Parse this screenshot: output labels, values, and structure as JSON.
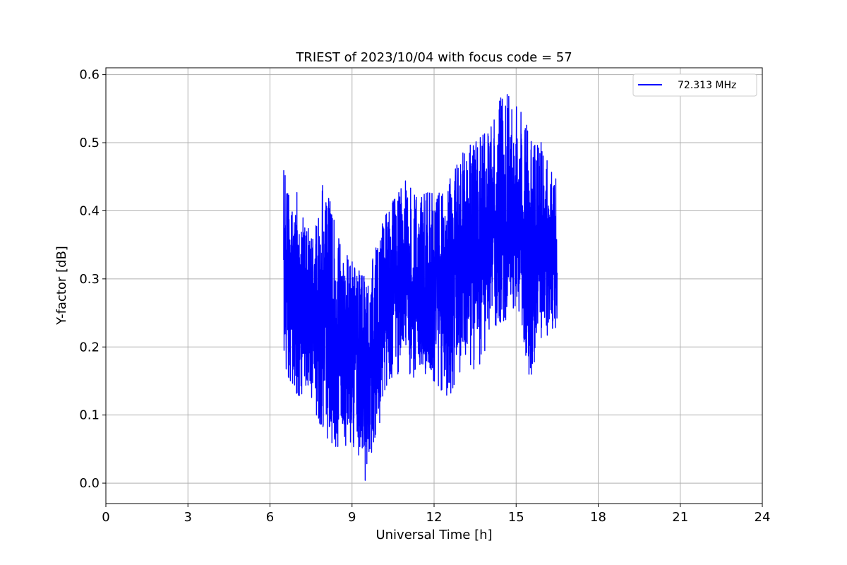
{
  "chart_data": {
    "type": "line",
    "title": "TRIEST of 2023/10/04 with focus code = 57",
    "xlabel": "Universal Time [h]",
    "ylabel": "Y-factor [dB]",
    "xlim": [
      0,
      24
    ],
    "ylim": [
      -0.03,
      0.61
    ],
    "xticks": [
      0,
      3,
      6,
      9,
      12,
      15,
      18,
      21,
      24
    ],
    "yticks": [
      0.0,
      0.1,
      0.2,
      0.3,
      0.4,
      0.5,
      0.6
    ],
    "ytick_labels": [
      "0.0",
      "0.1",
      "0.2",
      "0.3",
      "0.4",
      "0.5",
      "0.6"
    ],
    "grid": true,
    "legend_position": "top-right",
    "series": [
      {
        "name": "72.313 MHz",
        "color": "#0000ff",
        "x_range": [
          6.5,
          16.5
        ],
        "envelope": [
          {
            "x": 6.5,
            "low": 0.17,
            "high": 0.46,
            "center": 0.27
          },
          {
            "x": 7.0,
            "low": 0.13,
            "high": 0.43,
            "center": 0.25
          },
          {
            "x": 7.5,
            "low": 0.12,
            "high": 0.36,
            "center": 0.24
          },
          {
            "x": 8.0,
            "low": 0.07,
            "high": 0.46,
            "center": 0.23
          },
          {
            "x": 8.5,
            "low": 0.05,
            "high": 0.36,
            "center": 0.21
          },
          {
            "x": 9.0,
            "low": 0.06,
            "high": 0.33,
            "center": 0.19
          },
          {
            "x": 9.5,
            "low": 0.0,
            "high": 0.3,
            "center": 0.17
          },
          {
            "x": 10.0,
            "low": 0.08,
            "high": 0.37,
            "center": 0.23
          },
          {
            "x": 10.5,
            "low": 0.16,
            "high": 0.42,
            "center": 0.29
          },
          {
            "x": 11.0,
            "low": 0.15,
            "high": 0.45,
            "center": 0.3
          },
          {
            "x": 11.5,
            "low": 0.16,
            "high": 0.43,
            "center": 0.28
          },
          {
            "x": 12.0,
            "low": 0.15,
            "high": 0.43,
            "center": 0.28
          },
          {
            "x": 12.5,
            "low": 0.11,
            "high": 0.44,
            "center": 0.29
          },
          {
            "x": 13.0,
            "low": 0.17,
            "high": 0.49,
            "center": 0.33
          },
          {
            "x": 13.5,
            "low": 0.16,
            "high": 0.5,
            "center": 0.35
          },
          {
            "x": 14.0,
            "low": 0.2,
            "high": 0.52,
            "center": 0.36
          },
          {
            "x": 14.5,
            "low": 0.23,
            "high": 0.58,
            "center": 0.38
          },
          {
            "x": 15.0,
            "low": 0.26,
            "high": 0.56,
            "center": 0.39
          },
          {
            "x": 15.5,
            "low": 0.15,
            "high": 0.52,
            "center": 0.36
          },
          {
            "x": 16.0,
            "low": 0.22,
            "high": 0.51,
            "center": 0.34
          },
          {
            "x": 16.5,
            "low": 0.21,
            "high": 0.44,
            "center": 0.32
          }
        ]
      }
    ]
  }
}
